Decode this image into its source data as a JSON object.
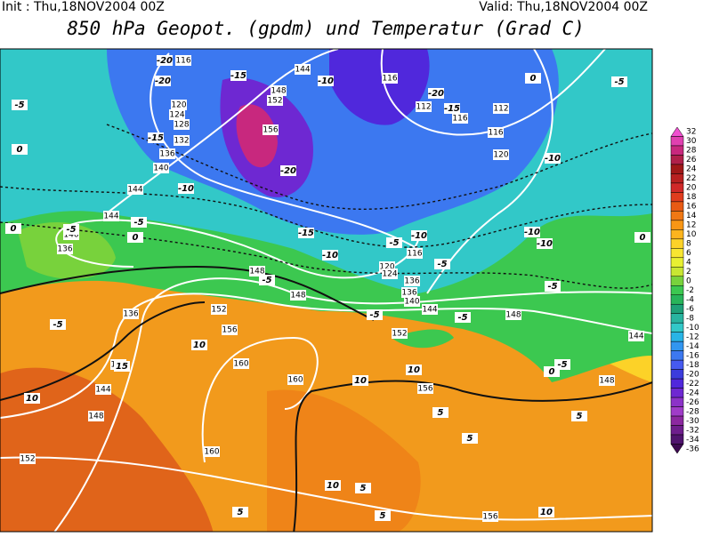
{
  "header": {
    "init": "Init : Thu,18NOV2004 00Z",
    "valid": "Valid: Thu,18NOV2004 00Z",
    "title": "850 hPa Geopot. (gpdm) und Temperatur (Grad C)"
  },
  "colorbar": {
    "values": [
      32,
      30,
      28,
      26,
      24,
      22,
      20,
      18,
      16,
      14,
      12,
      10,
      8,
      6,
      4,
      2,
      0,
      -2,
      -4,
      -6,
      -8,
      -10,
      -12,
      -14,
      -16,
      -18,
      -20,
      -22,
      -24,
      -26,
      -28,
      -30,
      -32,
      -34,
      -36
    ],
    "colors": [
      "#f050d0",
      "#e040b0",
      "#c8287e",
      "#b0204a",
      "#a01818",
      "#b82020",
      "#d02828",
      "#e03c1e",
      "#e85a14",
      "#f07814",
      "#f89614",
      "#fcb41e",
      "#fcd228",
      "#f8e632",
      "#e8f032",
      "#c8e632",
      "#78d23c",
      "#3cc850",
      "#28b45a",
      "#1ea078",
      "#28b4a0",
      "#32c8c8",
      "#28b4e6",
      "#3296f0",
      "#3c78f0",
      "#465af0",
      "#3c3cdc",
      "#5028dc",
      "#6e28d2",
      "#8c32c8",
      "#a03cc8",
      "#8c28a0",
      "#6e1e8c",
      "#50146e",
      "#3c0a50"
    ]
  },
  "geopotential_labels": [
    "144",
    "148",
    "152",
    "156",
    "116",
    "112",
    "116",
    "112",
    "116",
    "120",
    "120",
    "124",
    "128",
    "132",
    "136",
    "140",
    "144",
    "144",
    "140",
    "136",
    "148",
    "148",
    "152",
    "156",
    "136",
    "140",
    "144",
    "148",
    "152",
    "160",
    "160",
    "160",
    "120",
    "124",
    "136",
    "136",
    "140",
    "144",
    "148",
    "152",
    "156",
    "156",
    "148",
    "144",
    "116",
    "116"
  ],
  "temperature_labels": [
    "-20",
    "-20",
    "-15",
    "-10",
    "-20",
    "-15",
    "-15",
    "-10",
    "-20",
    "-15",
    "-10",
    "-5",
    "-10",
    "-5",
    "-10",
    "-10",
    "-10",
    "-5",
    "0",
    "-5",
    "0",
    "-5",
    "0",
    "0",
    "-5",
    "-5",
    "0",
    "-5",
    "-5",
    "-5",
    "-5",
    "-5",
    "0",
    "10",
    "15",
    "10",
    "10",
    "10",
    "5",
    "5",
    "5",
    "10",
    "5",
    "5",
    "5",
    "10"
  ]
}
